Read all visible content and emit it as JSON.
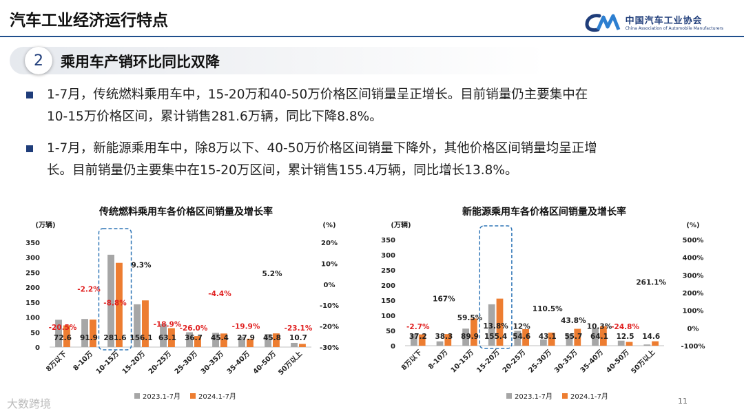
{
  "header": {
    "title": "汽车工业经济运行特点",
    "logo_cn": "中国汽车工业协会",
    "logo_en": "China Association of Automobile Manufacturers"
  },
  "section": {
    "number": "2",
    "title": "乘用车产销环比同比双降"
  },
  "bullets": [
    {
      "line1": "1-7月，传统燃料乘用车中，15-20万和40-50万价格区间销量呈正增长。目前销量仍主要集中在",
      "line2": "10-15万价格区间，累计销售281.6万辆，同比下降8.8%。"
    },
    {
      "line1": "1-7月，新能源乘用车中，除8万以下、40-50万价格区间销量下降外，其他价格区间销量均呈正增",
      "line2": "长。目前销量仍主要集中在15-20万区间，累计销售155.4万辆，同比增长13.8%。"
    }
  ],
  "footer": {
    "page": "11",
    "brand": "大数跨境"
  },
  "colors": {
    "series_2023": "#a6a6a6",
    "series_2024": "#ed7d31",
    "negative_label": "#e02020",
    "accent": "#1f3d7a"
  },
  "chart_data": [
    {
      "type": "bar",
      "title": "传统燃料乘用车各价格区间销量及增长率",
      "ylabel_left": "(万辆)",
      "ylabel_right": "(%)",
      "categories": [
        "8万以下",
        "8-10万",
        "10-15万",
        "15-20万",
        "20-25万",
        "25-30万",
        "30-35万",
        "35-40万",
        "40-50万",
        "50万以上"
      ],
      "series": [
        {
          "name": "2023.1-7月",
          "values": [
            91.3,
            94.0,
            308.8,
            143.0,
            77.8,
            49.6,
            47.5,
            34.8,
            43.6,
            13.9
          ]
        },
        {
          "name": "2024.1-7月",
          "values": [
            72.6,
            91.9,
            281.6,
            156.1,
            63.1,
            36.7,
            45.4,
            27.9,
            45.8,
            10.7
          ]
        }
      ],
      "value_labels": [
        "72.6",
        "91.9",
        "281.6",
        "156.1",
        "63.1",
        "36.7",
        "45.4",
        "27.9",
        "45.8",
        "10.7"
      ],
      "growth_rate": [
        -20.5,
        -2.2,
        -8.8,
        9.3,
        -18.9,
        -26.0,
        -4.4,
        -19.9,
        5.2,
        -23.1
      ],
      "growth_labels": [
        "-20.5%",
        "-2.2%",
        "-8.8%",
        "9.3%",
        "-18.9%",
        "-26.0%",
        "-4.4%",
        "-19.9%",
        "5.2%",
        "-23.1%"
      ],
      "ylim_left": [
        0,
        350
      ],
      "yticks_left": [
        "0",
        "50",
        "100",
        "150",
        "200",
        "250",
        "300",
        "350"
      ],
      "ylim_right": [
        -30,
        20
      ],
      "yticks_right": [
        "-30%",
        "-20%",
        "-10%",
        "0%",
        "10%",
        "20%"
      ],
      "highlight_category": "10-15万"
    },
    {
      "type": "bar",
      "title": "新能源乘用车各价格区间销量及增长率",
      "ylabel_left": "(万辆)",
      "ylabel_right": "(%)",
      "categories": [
        "8万以下",
        "8-10万",
        "10-15万",
        "15-20万",
        "20-25万",
        "25-30万",
        "30-35万",
        "35-40万",
        "40-50万",
        "50万以上"
      ],
      "series": [
        {
          "name": "2023.1-7月",
          "values": [
            38.2,
            14.3,
            56.4,
            136.6,
            48.8,
            20.5,
            38.8,
            58.1,
            16.6,
            4.0
          ]
        },
        {
          "name": "2024.1-7月",
          "values": [
            37.2,
            38.3,
            89.9,
            155.4,
            54.6,
            43.1,
            55.7,
            64.1,
            12.5,
            14.6
          ]
        }
      ],
      "value_labels": [
        "37.2",
        "38.3",
        "89.9",
        "155.4",
        "54.6",
        "43.1",
        "55.7",
        "64.1",
        "12.5",
        "14.6"
      ],
      "growth_rate": [
        -2.7,
        167,
        59.5,
        13.8,
        12,
        110.5,
        43.8,
        10.3,
        -24.8,
        261.1
      ],
      "growth_labels": [
        "-2.7%",
        "167%",
        "59.5%",
        "13.8%",
        "12%",
        "110.5%",
        "43.8%",
        "10.3%",
        "-24.8%",
        "261.1%"
      ],
      "ylim_left": [
        0,
        350
      ],
      "yticks_left": [
        "0",
        "50",
        "100",
        "150",
        "200",
        "250",
        "300",
        "350"
      ],
      "ylim_right": [
        -100,
        500
      ],
      "yticks_right": [
        "-100%",
        "0%",
        "100%",
        "200%",
        "300%",
        "400%",
        "500%"
      ],
      "highlight_category": "15-20万"
    }
  ]
}
